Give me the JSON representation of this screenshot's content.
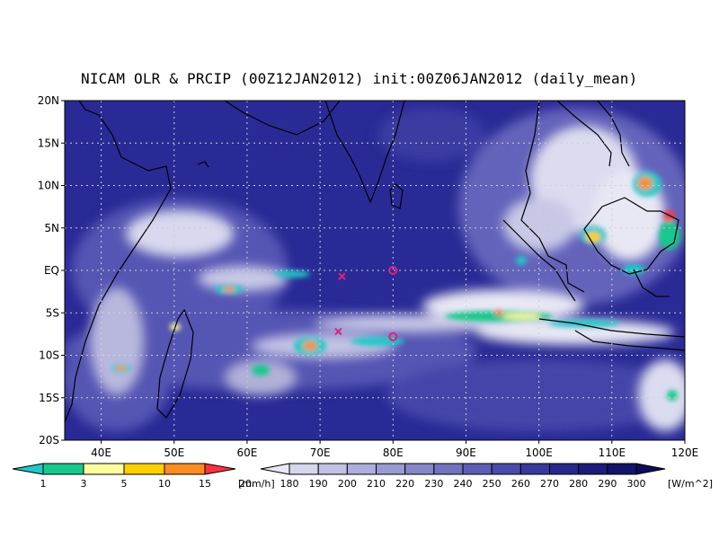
{
  "title": "NICAM OLR & PRCIP (00Z12JAN2012) init:00Z06JAN2012 (daily_mean)",
  "map": {
    "lon_range": [
      35,
      120
    ],
    "lat_range": [
      -20,
      20
    ],
    "lat_ticks": [
      {
        "value": 20,
        "label": "20N"
      },
      {
        "value": 15,
        "label": "15N"
      },
      {
        "value": 10,
        "label": "10N"
      },
      {
        "value": 5,
        "label": "5N"
      },
      {
        "value": 0,
        "label": "EQ"
      },
      {
        "value": -5,
        "label": "5S"
      },
      {
        "value": -10,
        "label": "10S"
      },
      {
        "value": -15,
        "label": "15S"
      },
      {
        "value": -20,
        "label": "20S"
      }
    ],
    "lon_ticks": [
      {
        "value": 40,
        "label": "40E"
      },
      {
        "value": 50,
        "label": "50E"
      },
      {
        "value": 60,
        "label": "60E"
      },
      {
        "value": 70,
        "label": "70E"
      },
      {
        "value": 80,
        "label": "80E"
      },
      {
        "value": 90,
        "label": "90E"
      },
      {
        "value": 100,
        "label": "100E"
      },
      {
        "value": 110,
        "label": "110E"
      },
      {
        "value": 120,
        "label": "120E"
      }
    ],
    "markers": [
      {
        "type": "cross",
        "lon": 73,
        "lat": -0.7,
        "color": "#e0207a"
      },
      {
        "type": "circle",
        "lon": 80,
        "lat": 0,
        "color": "#e0207a"
      },
      {
        "type": "cross",
        "lon": 72.5,
        "lat": -7.2,
        "color": "#e0207a"
      },
      {
        "type": "circle",
        "lon": 80,
        "lat": -7.8,
        "color": "#e0207a"
      }
    ]
  },
  "precip_colorbar": {
    "levels": [
      "1",
      "3",
      "5",
      "10",
      "15",
      "20"
    ],
    "unit": "[mm/h]",
    "colors": [
      "#20c8c8",
      "#18c88c",
      "#ffffa0",
      "#ffd000",
      "#ff8c20",
      "#ff3040"
    ]
  },
  "olr_colorbar": {
    "levels": [
      "180",
      "190",
      "200",
      "210",
      "220",
      "230",
      "240",
      "250",
      "260",
      "270",
      "280",
      "290",
      "300"
    ],
    "unit": "[W/m^2]",
    "colors": [
      "#e8e8f4",
      "#d6d6ec",
      "#c2c2e4",
      "#aeaedc",
      "#9a9ad2",
      "#8686c8",
      "#7272be",
      "#5e5eb4",
      "#4a4aa8",
      "#38389c",
      "#28288c",
      "#1c1c7c",
      "#14146a",
      "#0c0c5a"
    ]
  }
}
